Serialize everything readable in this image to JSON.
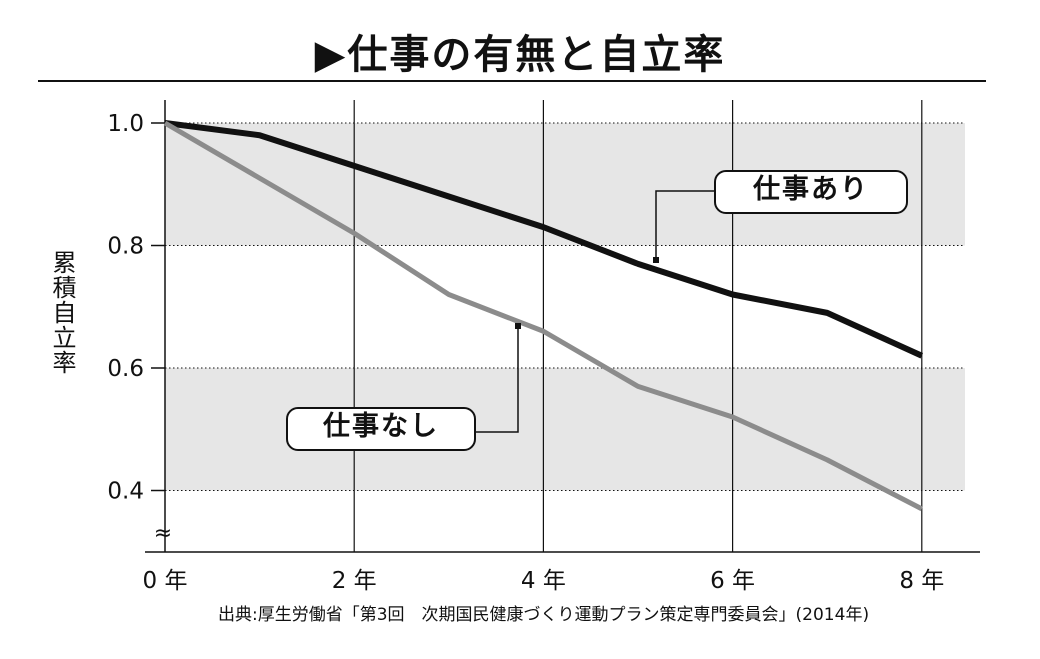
{
  "title": "▶仕事の有無と自立率",
  "source": "出典:厚生労働省「第3回　次期国民健康づくり運動プラン策定専門委員会」(2014年)",
  "colors": {
    "with_job": "#111111",
    "without_job": "#8c8c8c",
    "band": "#e6e6e6"
  },
  "chart_data": {
    "type": "line",
    "title": "仕事の有無と自立率",
    "xlabel": "",
    "ylabel": "累積自立率",
    "x": [
      0,
      1,
      2,
      3,
      4,
      5,
      6,
      7,
      8
    ],
    "x_ticks": [
      {
        "value": 0,
        "label": "0 年"
      },
      {
        "value": 2,
        "label": "2 年"
      },
      {
        "value": 4,
        "label": "4 年"
      },
      {
        "value": 6,
        "label": "6 年"
      },
      {
        "value": 8,
        "label": "8 年"
      }
    ],
    "y_ticks": [
      {
        "value": 1.0,
        "label": "1.0"
      },
      {
        "value": 0.8,
        "label": "0.8"
      },
      {
        "value": 0.6,
        "label": "0.6"
      },
      {
        "value": 0.4,
        "label": "0.4"
      }
    ],
    "xlim": [
      0,
      8.6
    ],
    "ylim": [
      0.3,
      1.04
    ],
    "axis_break_symbol": "≈",
    "grid": true,
    "series": [
      {
        "name": "仕事あり",
        "values": [
          1.0,
          0.98,
          0.93,
          0.88,
          0.83,
          0.77,
          0.72,
          0.69,
          0.62
        ]
      },
      {
        "name": "仕事なし",
        "values": [
          1.0,
          0.91,
          0.82,
          0.72,
          0.66,
          0.57,
          0.52,
          0.45,
          0.37
        ]
      }
    ]
  }
}
